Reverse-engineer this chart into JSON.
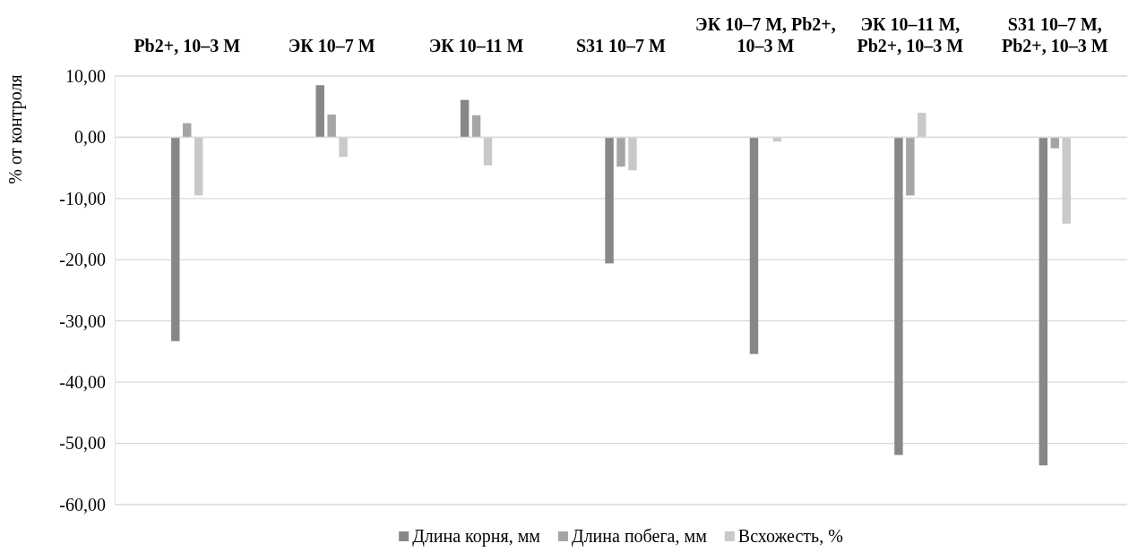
{
  "chart_data": {
    "type": "bar",
    "ylabel": "% от контроля",
    "categories": [
      "Pb2+, 10–3 М",
      "ЭК 10–7 М",
      "ЭК 10–11 М",
      "S31 10–7 М",
      "ЭК 10–7 М, Pb2+, 10–3 М",
      "ЭК 10–11 М, Pb2+, 10–3 М",
      "S31 10–7 М, Pb2+, 10–3 М"
    ],
    "series": [
      {
        "name": "Длина корня, мм",
        "color": "#878787",
        "values": [
          -33.3,
          8.5,
          6.1,
          -20.6,
          -35.4,
          -51.9,
          -53.6
        ]
      },
      {
        "name": "Длина побега, мм",
        "color": "#a5a5a5",
        "values": [
          2.3,
          3.7,
          3.6,
          -4.8,
          0,
          -9.5,
          -1.8
        ]
      },
      {
        "name": "Всхожесть, %",
        "color": "#c9c9c9",
        "values": [
          -9.5,
          -3.2,
          -4.6,
          -5.4,
          -0.7,
          4.0,
          -14.1
        ]
      }
    ],
    "ylim": [
      -60,
      10
    ],
    "yticks": [
      {
        "value": 10,
        "label": "10,00"
      },
      {
        "value": 0,
        "label": "0,00"
      },
      {
        "value": -10,
        "label": "-10,00"
      },
      {
        "value": -20,
        "label": "-20,00"
      },
      {
        "value": -30,
        "label": "-30,00"
      },
      {
        "value": -40,
        "label": "-40,00"
      },
      {
        "value": -50,
        "label": "-50,00"
      },
      {
        "value": -60,
        "label": "-60,00"
      }
    ],
    "grid": "y",
    "legend": "bottom"
  }
}
